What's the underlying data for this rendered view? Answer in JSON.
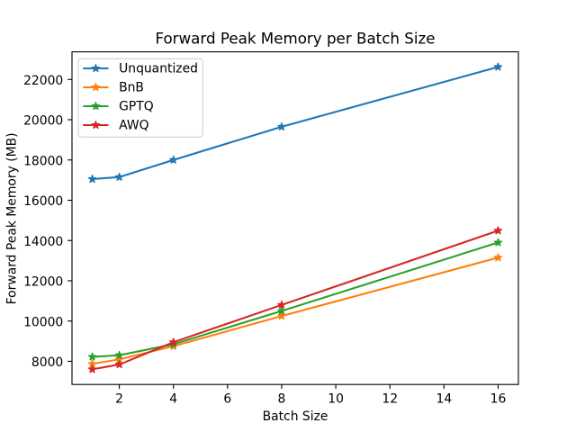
{
  "chart_data": {
    "type": "line",
    "title": "Forward Peak Memory per Batch Size",
    "xlabel": "Batch Size",
    "ylabel": "Forward Peak Memory (MB)",
    "x": [
      1,
      2,
      4,
      8,
      16
    ],
    "series": [
      {
        "name": "Unquantized",
        "color": "#1f77b4",
        "values": [
          17050,
          17150,
          18000,
          19650,
          22620
        ]
      },
      {
        "name": "BnB",
        "color": "#ff7f0e",
        "values": [
          7870,
          8100,
          8750,
          10250,
          13150
        ]
      },
      {
        "name": "GPTQ",
        "color": "#2ca02c",
        "values": [
          8220,
          8300,
          8850,
          10500,
          13900
        ]
      },
      {
        "name": "AWQ",
        "color": "#d62728",
        "values": [
          7600,
          7840,
          8950,
          10800,
          14490
        ]
      }
    ],
    "xticks": [
      2,
      4,
      6,
      8,
      10,
      12,
      14,
      16
    ],
    "yticks": [
      8000,
      10000,
      12000,
      14000,
      16000,
      18000,
      20000,
      22000
    ],
    "xlim": [
      0.25,
      16.75
    ],
    "ylim": [
      6849,
      23371
    ],
    "grid": false,
    "marker": "star",
    "legend_position": "upper-left",
    "background_color": "#ffffff",
    "spine_color": "#000000",
    "legend_border_color": "#cccccc"
  }
}
